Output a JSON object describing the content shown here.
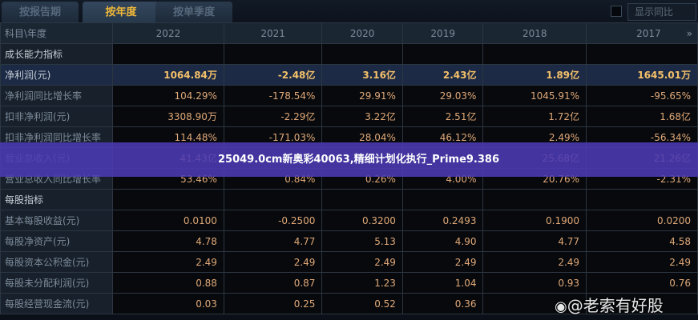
{
  "tabs": [
    {
      "label": "按报告期",
      "active": false
    },
    {
      "label": "按年度",
      "active": true
    },
    {
      "label": "按单季度",
      "active": false
    }
  ],
  "show_yoy_label": "显示同比",
  "header": {
    "label": "科目\\年度",
    "years": [
      "2022",
      "2021",
      "2020",
      "2019",
      "2018",
      "2017"
    ],
    "more_icon": "»"
  },
  "rows": [
    {
      "label": "成长能力指标",
      "type": "section",
      "values": [
        "",
        "",
        "",
        "",
        "",
        ""
      ]
    },
    {
      "label": "净利润(元)",
      "type": "highlight",
      "values": [
        "1064.84万",
        "-2.48亿",
        "3.16亿",
        "2.43亿",
        "1.89亿",
        "1645.01万"
      ]
    },
    {
      "label": "净利润同比增长率",
      "type": "normal",
      "values": [
        "104.29%",
        "-178.54%",
        "29.91%",
        "29.03%",
        "1045.91%",
        "-95.65%"
      ]
    },
    {
      "label": "扣非净利润(元)",
      "type": "normal",
      "values": [
        "3308.90万",
        "-2.29亿",
        "3.22亿",
        "2.51亿",
        "1.72亿",
        "1.68亿"
      ]
    },
    {
      "label": "扣非净利润同比增长率",
      "type": "normal",
      "values": [
        "114.48%",
        "-171.03%",
        "28.04%",
        "46.12%",
        "2.49%",
        "-56.34%"
      ]
    },
    {
      "label": "营业总收入(元)",
      "type": "normal",
      "values": [
        "41.43亿",
        "",
        "",
        "",
        "25.68亿",
        "21.26亿"
      ]
    },
    {
      "label": "营业总收入同比增长率",
      "type": "normal",
      "values": [
        "53.46%",
        "0.84%",
        "0.26%",
        "4.00%",
        "20.76%",
        "-2.31%"
      ]
    },
    {
      "label": "每股指标",
      "type": "section",
      "values": [
        "",
        "",
        "",
        "",
        "",
        ""
      ]
    },
    {
      "label": "基本每股收益(元)",
      "type": "normal",
      "values": [
        "0.0100",
        "-0.2500",
        "0.3200",
        "0.2493",
        "0.1900",
        "0.0200"
      ]
    },
    {
      "label": "每股净资产(元)",
      "type": "normal",
      "values": [
        "4.78",
        "4.77",
        "5.13",
        "4.90",
        "4.77",
        "4.58"
      ]
    },
    {
      "label": "每股资本公积金(元)",
      "type": "normal",
      "values": [
        "2.49",
        "2.49",
        "2.49",
        "2.49",
        "2.49",
        "2.49"
      ]
    },
    {
      "label": "每股未分配利润(元)",
      "type": "normal",
      "values": [
        "0.88",
        "0.87",
        "1.23",
        "1.04",
        "0.93",
        "0.76"
      ]
    },
    {
      "label": "每股经营现金流(元)",
      "type": "normal",
      "values": [
        "0.03",
        "0.25",
        "0.52",
        "0.36",
        "",
        ""
      ]
    }
  ],
  "banner_text": "25049.0cm新奥彩40063,精细计划化执行_Prime9.386",
  "watermark": "@老索有好股"
}
